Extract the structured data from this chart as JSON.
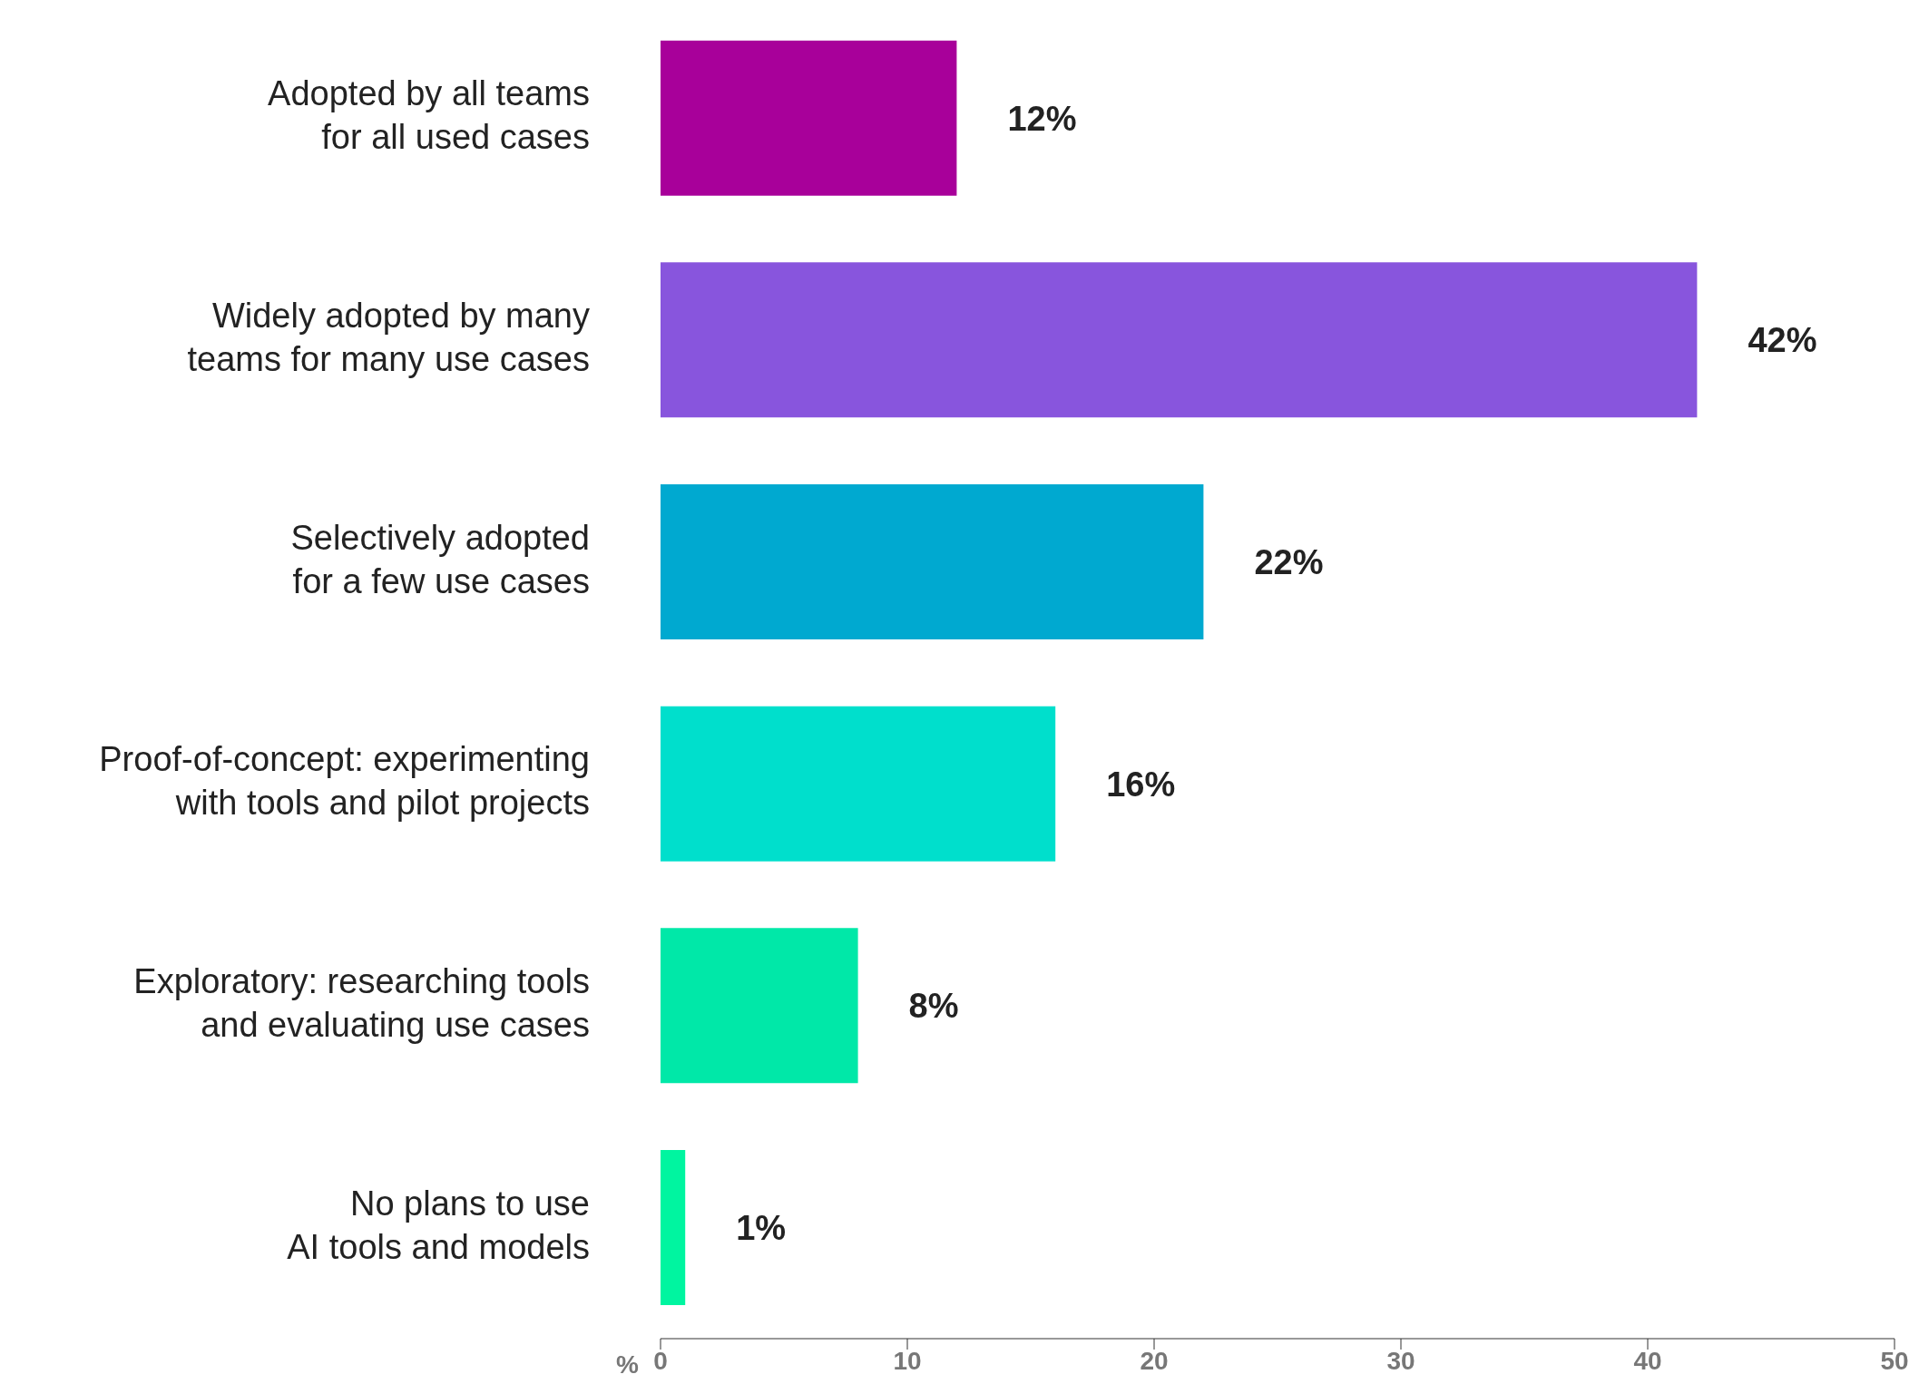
{
  "chart_data": {
    "type": "bar",
    "orientation": "horizontal",
    "xlabel": "%",
    "categories": [
      "Adopted by all teams\nfor all used cases",
      "Widely adopted by many\nteams for many use cases",
      "Selectively adopted\nfor a few use cases",
      "Proof-of-concept: experimenting\nwith tools and pilot projects",
      "Exploratory: researching tools\nand evaluating use cases",
      "No plans to use\nAI tools and models"
    ],
    "values": [
      12,
      42,
      22,
      16,
      8,
      1
    ],
    "value_labels": [
      "12%",
      "42%",
      "22%",
      "16%",
      "8%",
      "1%"
    ],
    "colors": [
      "#a8009a",
      "#8855dd",
      "#00a9d0",
      "#00dfcc",
      "#00e8a8",
      "#00f5a0"
    ],
    "xlim": [
      0,
      50
    ],
    "xticks": [
      0,
      10,
      20,
      30,
      40,
      50
    ]
  }
}
